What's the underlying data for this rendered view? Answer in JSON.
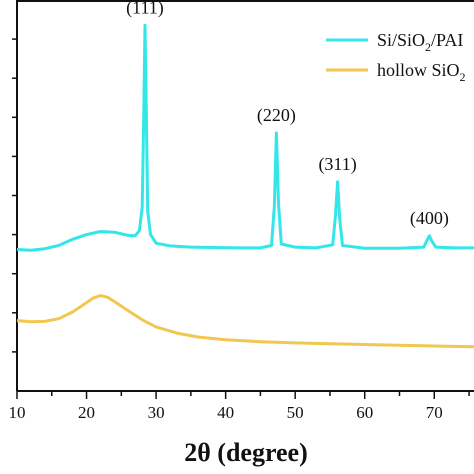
{
  "chart_data": {
    "type": "line",
    "xlabel": "2θ (degree)",
    "ylabel": "",
    "xlim": [
      10,
      76
    ],
    "ylim": [
      0,
      100
    ],
    "x_ticks": [
      "10",
      "20",
      "30",
      "40",
      "50",
      "60",
      "70"
    ],
    "y_ticks_labeled": false,
    "grid": false,
    "legend_position": "top-right",
    "series": [
      {
        "name": "Si/SiO2/PAI",
        "label_parts": {
          "main": "Si/SiO",
          "sub": "2",
          "tail": "/PAI"
        },
        "color": "#33e6ea",
        "x": [
          10,
          12,
          14,
          16,
          18,
          20,
          22,
          24,
          26,
          27,
          27.6,
          28.0,
          28.2,
          28.4,
          28.6,
          28.8,
          29.2,
          30,
          32,
          35,
          38,
          42,
          45,
          46.6,
          47.0,
          47.3,
          47.6,
          48.0,
          50,
          53,
          55.4,
          55.8,
          56.1,
          56.4,
          56.8,
          60,
          65,
          68.5,
          69.0,
          69.3,
          69.6,
          70.2,
          73,
          76
        ],
        "y": [
          36.2,
          36.0,
          36.4,
          37.2,
          38.8,
          40.0,
          40.8,
          40.6,
          39.8,
          39.7,
          41.0,
          47.0,
          68.0,
          93.5,
          70.0,
          46.0,
          40.0,
          37.8,
          37.1,
          36.8,
          36.7,
          36.6,
          36.6,
          37.2,
          47.0,
          66.0,
          48.0,
          37.6,
          36.8,
          36.6,
          37.4,
          45.0,
          53.5,
          44.0,
          37.2,
          36.5,
          36.5,
          36.8,
          38.7,
          39.7,
          38.5,
          36.8,
          36.6,
          36.6
        ]
      },
      {
        "name": "hollow SiO2",
        "label_parts": {
          "main": "hollow SiO",
          "sub": "2",
          "tail": ""
        },
        "color": "#f0c850",
        "x": [
          10,
          12,
          14,
          16,
          18,
          20,
          21,
          22,
          23,
          24,
          26,
          28,
          30,
          33,
          36,
          40,
          45,
          50,
          55,
          60,
          65,
          70,
          76
        ],
        "y": [
          18.0,
          17.7,
          17.8,
          18.5,
          20.2,
          22.6,
          23.8,
          24.4,
          24.0,
          22.9,
          20.5,
          18.2,
          16.4,
          14.8,
          13.8,
          13.1,
          12.6,
          12.3,
          12.1,
          11.9,
          11.7,
          11.5,
          11.3
        ]
      }
    ],
    "annotations": [
      {
        "text": "(111)",
        "x": 28.4
      },
      {
        "text": "(220)",
        "x": 47.3
      },
      {
        "text": "(311)",
        "x": 56.1
      },
      {
        "text": "(400)",
        "x": 69.3
      }
    ]
  }
}
